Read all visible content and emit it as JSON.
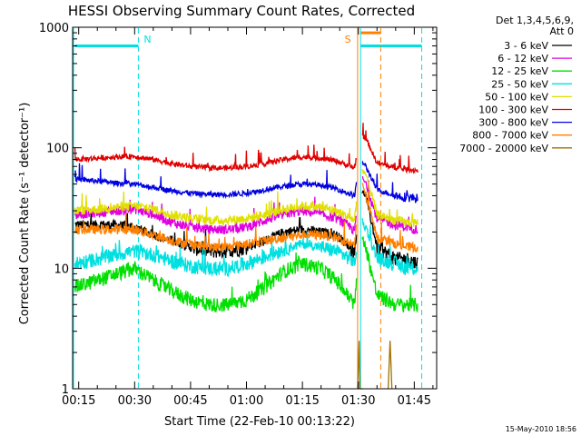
{
  "chart_data": {
    "type": "line",
    "title": "HESSI Observing Summary Count Rates, Corrected",
    "xlabel": "Start Time (22-Feb-10 00:13:22)",
    "ylabel": "Corrected Count Rate (s⁻¹ detector⁻¹)",
    "yscale": "log",
    "ylim": [
      1,
      1000
    ],
    "xlim_min": [
      13.37,
      111
    ],
    "x_ticks": [
      {
        "m": 15,
        "label": "00:15"
      },
      {
        "m": 30,
        "label": "00:30"
      },
      {
        "m": 45,
        "label": "00:45"
      },
      {
        "m": 60,
        "label": "01:00"
      },
      {
        "m": 75,
        "label": "01:15"
      },
      {
        "m": 90,
        "label": "01:30"
      },
      {
        "m": 105,
        "label": "01:45"
      }
    ],
    "y_ticks": [
      {
        "v": 1,
        "label": "1"
      },
      {
        "v": 10,
        "label": "10"
      },
      {
        "v": 100,
        "label": "100"
      },
      {
        "v": 1000,
        "label": "1000"
      }
    ],
    "legend_header": [
      "Det 1,3,4,5,6,9,",
      "Att 0"
    ],
    "legend_position": "right",
    "grid": false,
    "series": [
      {
        "name": "3 - 6 keV",
        "color": "#000000",
        "x": [
          14,
          20,
          25,
          30,
          35,
          40,
          45,
          50,
          55,
          60,
          65,
          70,
          75,
          80,
          84,
          88,
          89,
          90.5,
          92,
          95,
          100,
          103,
          106
        ],
        "y": [
          23,
          23,
          23,
          22,
          19,
          17,
          15,
          14,
          14,
          15,
          17,
          20,
          21,
          20,
          19,
          15,
          13,
          45,
          40,
          15,
          12,
          12,
          11
        ]
      },
      {
        "name": "6 - 12 keV",
        "color": "#e000e0",
        "x": [
          14,
          20,
          25,
          30,
          35,
          40,
          45,
          50,
          55,
          60,
          65,
          70,
          75,
          80,
          84,
          88,
          89,
          90.5,
          92,
          95,
          100,
          103,
          106
        ],
        "y": [
          28,
          29,
          30,
          31,
          28,
          24,
          22,
          21,
          21,
          22,
          25,
          28,
          30,
          28,
          26,
          22,
          20,
          60,
          50,
          26,
          23,
          22,
          21
        ]
      },
      {
        "name": "12 - 25 keV",
        "color": "#00e000",
        "x": [
          14,
          20,
          25,
          30,
          35,
          40,
          45,
          50,
          55,
          60,
          65,
          70,
          75,
          80,
          84,
          88,
          89,
          90.5,
          92,
          95,
          100,
          103,
          106
        ],
        "y": [
          7,
          8,
          9,
          10,
          8,
          6.5,
          5.5,
          5,
          5,
          5.5,
          7,
          9.5,
          11,
          10,
          8,
          5.5,
          5,
          20,
          15,
          6,
          5,
          5,
          5
        ]
      },
      {
        "name": "25 - 50 keV",
        "color": "#00e0e0",
        "x": [
          14,
          20,
          25,
          30,
          35,
          40,
          45,
          50,
          55,
          60,
          65,
          70,
          75,
          80,
          84,
          88,
          89,
          90.5,
          92,
          95,
          100,
          103,
          106
        ],
        "y": [
          11,
          12,
          13,
          14,
          13,
          11.5,
          10.5,
          10,
          10,
          11,
          12.5,
          14.5,
          16,
          15,
          14,
          12,
          11,
          25,
          22,
          12,
          11,
          10,
          10
        ]
      },
      {
        "name": "50 - 100 keV",
        "color": "#e0e000",
        "x": [
          14,
          20,
          25,
          30,
          35,
          40,
          45,
          50,
          55,
          60,
          65,
          70,
          75,
          80,
          84,
          88,
          89,
          90.5,
          92,
          95,
          100,
          103,
          106
        ],
        "y": [
          30,
          31,
          32,
          33,
          31,
          28,
          26,
          25,
          25,
          26,
          28,
          31,
          33,
          32,
          30,
          26,
          25,
          70,
          60,
          28,
          25,
          24,
          24
        ]
      },
      {
        "name": "100 - 300 keV",
        "color": "#e00000",
        "x": [
          14,
          20,
          25,
          30,
          35,
          40,
          45,
          50,
          55,
          60,
          65,
          70,
          75,
          80,
          84,
          88,
          89,
          90.5,
          92,
          95,
          100,
          103,
          106
        ],
        "y": [
          80,
          82,
          84,
          85,
          80,
          74,
          70,
          68,
          68,
          70,
          74,
          80,
          84,
          82,
          78,
          70,
          68,
          130,
          120,
          75,
          68,
          66,
          65
        ]
      },
      {
        "name": "300 - 800 keV",
        "color": "#0000e0",
        "x": [
          14,
          20,
          25,
          30,
          35,
          40,
          45,
          50,
          55,
          60,
          65,
          70,
          75,
          80,
          84,
          88,
          89,
          90.5,
          92,
          95,
          100,
          103,
          106
        ],
        "y": [
          55,
          53,
          51,
          50,
          47,
          44,
          42,
          41,
          41,
          42,
          45,
          48,
          50,
          49,
          46,
          41,
          40,
          80,
          70,
          45,
          40,
          39,
          38
        ]
      },
      {
        "name": "800 - 7000 keV",
        "color": "#ff8000",
        "x": [
          14,
          20,
          25,
          30,
          35,
          40,
          45,
          50,
          55,
          60,
          65,
          70,
          75,
          80,
          84,
          88,
          89,
          90.5,
          92,
          95,
          100,
          103,
          106
        ],
        "y": [
          21,
          21,
          21,
          21,
          19,
          17,
          16,
          15,
          15,
          16,
          17,
          18,
          19,
          19,
          18,
          16,
          15,
          60,
          40,
          18,
          16,
          15,
          15
        ]
      },
      {
        "name": "7000 - 20000 keV",
        "color": "#a07000",
        "x": [
          89.8,
          90.0,
          90.2,
          90.4,
          91.2,
          98,
          98.5,
          99
        ],
        "y": [
          1,
          1.5,
          2.5,
          1,
          1,
          1,
          2.5,
          1
        ]
      }
    ],
    "annotations": [
      {
        "label": "N",
        "color": "#00e0e0",
        "x": 31
      },
      {
        "label": "S",
        "color": "#ff8000",
        "x": 89
      }
    ],
    "flag_bars": [
      {
        "name": "night",
        "color": "#00e0e0",
        "x": [
          14,
          31
        ],
        "y": 700
      },
      {
        "name": "night",
        "color": "#00e0e0",
        "x": [
          90.6,
          107
        ],
        "y": 700
      },
      {
        "name": "saa",
        "color": "#ff8000",
        "x": [
          90.6,
          96
        ],
        "y": 900
      }
    ],
    "markers": [
      {
        "color": "#00e0e0",
        "style": "dashed",
        "x": 31
      },
      {
        "color": "#00e0e0",
        "style": "solid",
        "x": 13.6
      },
      {
        "color": "#00e0e0",
        "style": "solid",
        "x": 90.6
      },
      {
        "color": "#ff8000",
        "style": "solid",
        "x": 89.8
      },
      {
        "color": "#ff8000",
        "style": "dashed",
        "x": 96
      },
      {
        "color": "#00e0e0",
        "style": "dashed",
        "x": 107
      }
    ]
  },
  "footer": {
    "date": "15-May-2010 18:56"
  }
}
